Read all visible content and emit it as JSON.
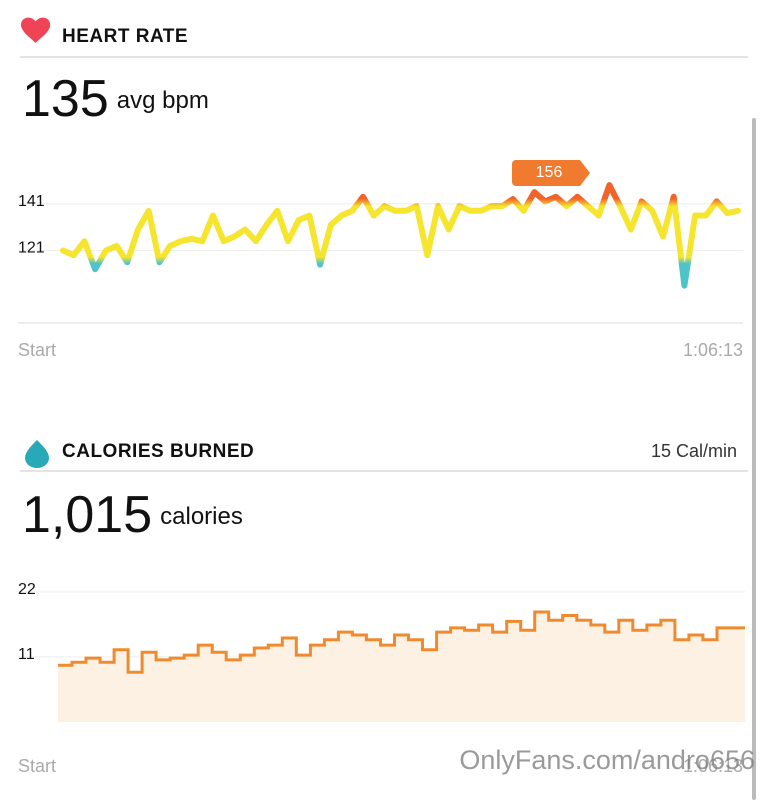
{
  "heart_rate": {
    "title": "HEART RATE",
    "average": "135",
    "average_unit": "avg bpm",
    "peak_label": "156",
    "x_start": "Start",
    "x_end": "1:06:13",
    "chart_data": {
      "type": "line",
      "ylim": [
        90,
        164
      ],
      "yticks": [
        121,
        141
      ],
      "colors": [
        "#4ec3c9",
        "#f6e52f",
        "#f0642b"
      ],
      "values": [
        121,
        119,
        125,
        113,
        121,
        123,
        116,
        130,
        138,
        116,
        123,
        125,
        126,
        125,
        136,
        125,
        127,
        130,
        125,
        132,
        138,
        125,
        134,
        136,
        115,
        132,
        136,
        138,
        144,
        136,
        140,
        138,
        138,
        140,
        119,
        140,
        130,
        140,
        138,
        138,
        140,
        140,
        143,
        138,
        146,
        142,
        144,
        140,
        144,
        140,
        136,
        149,
        140,
        130,
        142,
        138,
        127,
        144,
        106,
        136,
        136,
        142,
        137,
        138
      ]
    }
  },
  "calories": {
    "title": "CALORIES BURNED",
    "rate": "15 Cal/min",
    "total": "1,015",
    "total_unit": "calories",
    "x_start": "Start",
    "x_end": "1:06:13",
    "chart_data": {
      "type": "step-area",
      "ylim": [
        0,
        24
      ],
      "yticks": [
        11,
        22
      ],
      "color": "#ef8a2e",
      "fill": "#fcf1e2",
      "values": [
        9.6,
        10.1,
        10.8,
        10.1,
        12.2,
        8.4,
        11.8,
        10.5,
        10.8,
        11.3,
        13,
        11.8,
        10.5,
        11.3,
        12.5,
        13,
        14.2,
        11.3,
        13,
        13.9,
        15.2,
        14.7,
        13.9,
        13,
        14.7,
        13.9,
        12.2,
        15.2,
        15.9,
        15.5,
        16.4,
        15.2,
        17,
        15.5,
        18.6,
        17.2,
        18,
        17.2,
        16.4,
        15.2,
        17.2,
        15.5,
        16.4,
        17.2,
        13.9,
        14.7,
        13.9,
        15.9,
        15.9
      ]
    }
  },
  "watermark": "OnlyFans.com/andro656"
}
